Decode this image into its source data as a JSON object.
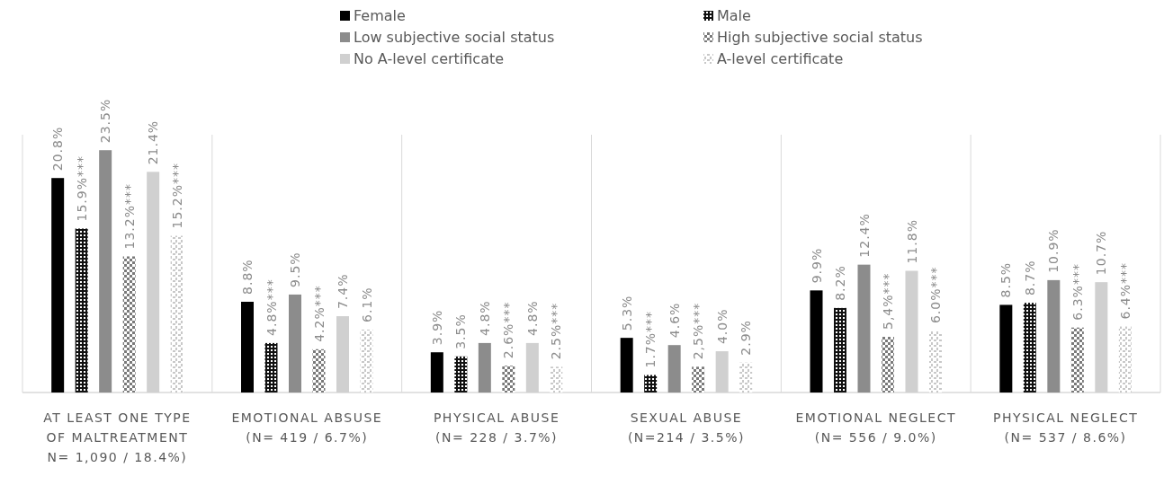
{
  "chart_data": {
    "type": "bar",
    "categories": [
      "AT LEAST ONE TYPE OF MALTREATMENT N= 1,090 / 18.4%)",
      "EMOTIONAL ABSUSE (N= 419 / 6.7%)",
      "PHYSICAL ABUSE (N= 228 / 3.7%)",
      "SEXUAL ABUSE (N=214 / 3.5%)",
      "EMOTIONAL NEGLECT (N= 556 / 9.0%)",
      "PHYSICAL NEGLECT (N= 537 / 8.6%)"
    ],
    "series": [
      {
        "name": "Female",
        "color": "#000000",
        "values": [
          20.8,
          8.8,
          3.9,
          5.3,
          9.9,
          8.5
        ],
        "value_labels": [
          "20.8%",
          "8.8%",
          "3.9%",
          "5.3%",
          "9.9%",
          "8.5%"
        ]
      },
      {
        "name": "Male",
        "color": "#111111",
        "values": [
          15.9,
          4.8,
          3.5,
          1.7,
          8.2,
          8.7
        ],
        "value_labels": [
          "15.9%***",
          "4.8%***",
          "3.5%",
          "1.7%***",
          "8.2%",
          "8.7%"
        ]
      },
      {
        "name": "Low subjective social status",
        "color": "#8c8c8c",
        "values": [
          23.5,
          9.5,
          4.8,
          4.6,
          12.4,
          10.9
        ],
        "value_labels": [
          "23.5%",
          "9.5%",
          "4.8%",
          "4.6%",
          "12.4%",
          "10.9%"
        ]
      },
      {
        "name": "High subjective social status",
        "color": "#7a7a7a",
        "values": [
          13.2,
          4.2,
          2.6,
          2.5,
          5.4,
          6.3
        ],
        "value_labels": [
          "13.2%***",
          "4.2%***",
          "2.6%***",
          "2,5%***",
          "5,4%***",
          "6.3%***"
        ]
      },
      {
        "name": "No A-level certificate",
        "color": "#d0d0d0",
        "values": [
          21.4,
          7.4,
          4.8,
          4.0,
          11.8,
          10.7
        ],
        "value_labels": [
          "21.4%",
          "7.4%",
          "4.8%",
          "4.0%",
          "11.8%",
          "10.7%"
        ]
      },
      {
        "name": "A-level certificate",
        "color": "#c8c8c8",
        "values": [
          15.2,
          6.1,
          2.5,
          2.9,
          6.0,
          6.4
        ],
        "value_labels": [
          "15.2%***",
          "6.1%",
          "2.5%***",
          "2.9%",
          "6.0%***",
          "6.4%***"
        ]
      }
    ],
    "legend": "top"
  }
}
